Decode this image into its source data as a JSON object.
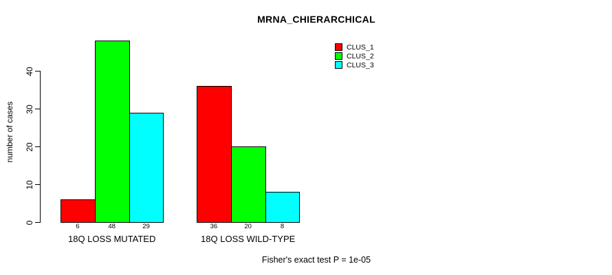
{
  "title": "MRNA_CHIERARCHICAL",
  "footer": "Fisher's exact test P = 1e-05",
  "chart_data": {
    "type": "bar",
    "grouped": true,
    "categories": [
      "18Q LOSS MUTATED",
      "18Q LOSS WILD-TYPE"
    ],
    "series": [
      {
        "name": "CLUS_1",
        "color": "#FF0000",
        "values": [
          6,
          36
        ]
      },
      {
        "name": "CLUS_2",
        "color": "#00FF00",
        "values": [
          48,
          20
        ]
      },
      {
        "name": "CLUS_3",
        "color": "#00FFFF",
        "values": [
          29,
          8
        ]
      }
    ],
    "bar_value_labels": [
      [
        6,
        48,
        29
      ],
      [
        36,
        20,
        8
      ]
    ],
    "ylabel": "number of cases",
    "xlabel": "",
    "yticks": [
      0,
      10,
      20,
      30,
      40
    ],
    "ylim": [
      0,
      48
    ],
    "grid": false,
    "legend_position": "top-right",
    "bar_border_color": "#000000",
    "axis_color": "#000000"
  }
}
